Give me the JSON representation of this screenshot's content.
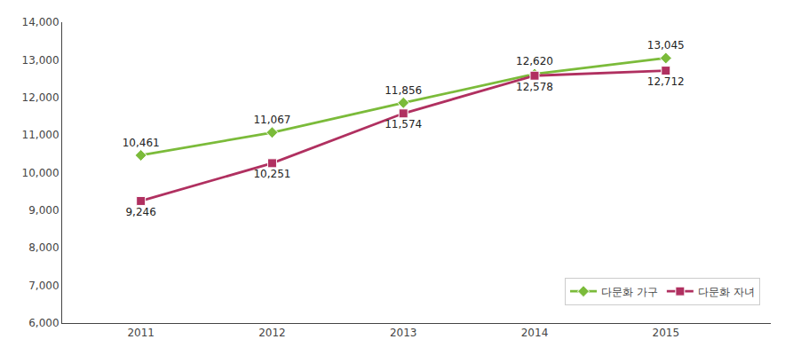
{
  "chart_data": {
    "type": "line",
    "x": [
      2011,
      2012,
      2013,
      2014,
      2015
    ],
    "xlim": [
      2010.4,
      2015.8
    ],
    "xticks": [
      2011,
      2012,
      2013,
      2014,
      2015
    ],
    "ylim": [
      6000,
      14000
    ],
    "yticks": [
      {
        "value": 6000,
        "label": "6,000"
      },
      {
        "value": 7000,
        "label": "7,000"
      },
      {
        "value": 8000,
        "label": "8,000"
      },
      {
        "value": 9000,
        "label": "9,000"
      },
      {
        "value": 10000,
        "label": "10,000"
      },
      {
        "value": 11000,
        "label": "11,000"
      },
      {
        "value": 12000,
        "label": "12,000"
      },
      {
        "value": 13000,
        "label": "13,000"
      },
      {
        "value": 14000,
        "label": "14,000"
      }
    ],
    "grid": false,
    "legend": "lower right",
    "data_labels": true,
    "series": [
      {
        "name": "다문화 가구",
        "color": "#7BBB3A",
        "marker": "diamond",
        "values": [
          10461,
          11067,
          11856,
          12620,
          13045
        ],
        "value_labels": [
          "10,461",
          "11,067",
          "11,856",
          "12,620",
          "13,045"
        ]
      },
      {
        "name": "다문화 자녀",
        "color": "#B03060",
        "marker": "square",
        "values": [
          9246,
          10251,
          11574,
          12578,
          12712
        ],
        "value_labels": [
          "9,246",
          "10,251",
          "11,574",
          "12,578",
          "12,712"
        ]
      }
    ]
  }
}
